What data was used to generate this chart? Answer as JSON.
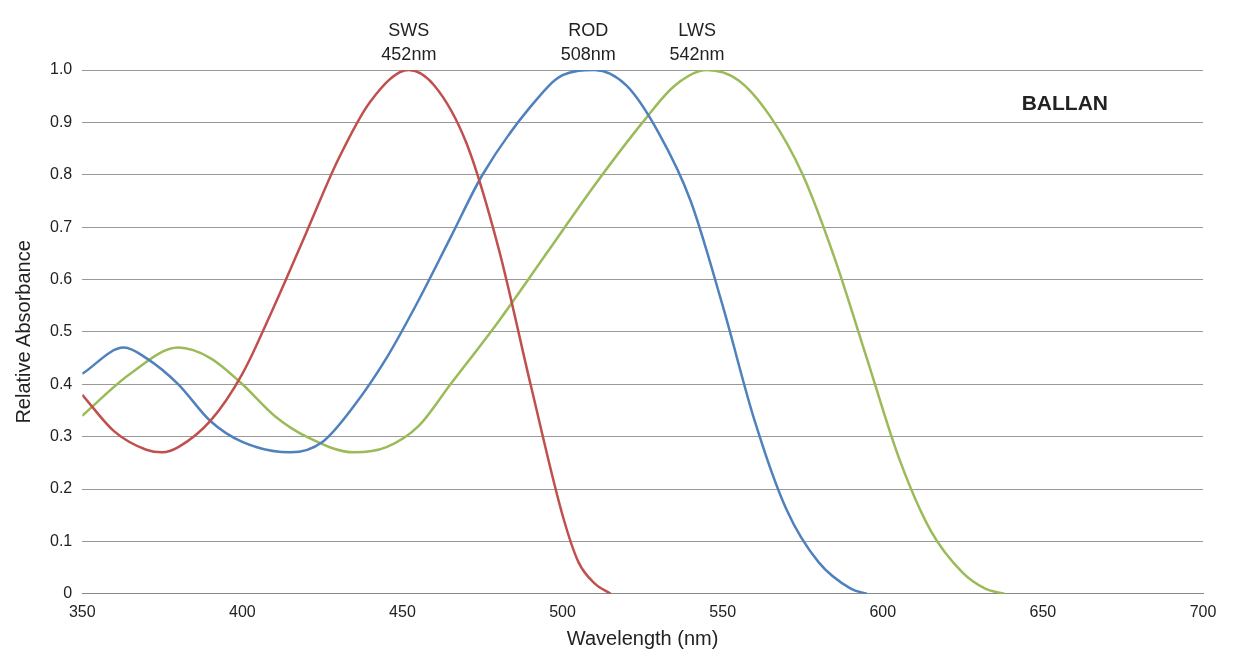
{
  "chart_data": {
    "type": "line",
    "xlabel": "Wavelength (nm)",
    "ylabel": "Relative Absorbance",
    "xlim": [
      350,
      700
    ],
    "xticks": [
      350,
      400,
      450,
      500,
      550,
      600,
      650,
      700
    ],
    "ylim": [
      0,
      1
    ],
    "yticks": [
      {
        "value": 0,
        "label": "0"
      },
      0.1,
      0.2,
      0.3,
      0.4,
      0.5,
      0.6,
      0.7,
      0.8,
      0.9,
      {
        "value": 1,
        "label": "1.0"
      }
    ],
    "grid": "y",
    "legend": false,
    "marker": "none",
    "line_style": "solid",
    "series": [
      {
        "name": "SWS",
        "color": "#c0504d",
        "x": [
          350,
          360,
          370,
          375,
          380,
          390,
          400,
          410,
          420,
          430,
          440,
          452,
          460,
          470,
          480,
          490,
          500,
          505,
          510,
          515
        ],
        "values": [
          0.38,
          0.31,
          0.275,
          0.27,
          0.28,
          0.33,
          0.42,
          0.55,
          0.69,
          0.83,
          0.94,
          1.0,
          0.97,
          0.86,
          0.66,
          0.4,
          0.15,
          0.06,
          0.02,
          0
        ]
      },
      {
        "name": "ROD",
        "color": "#4f81bd",
        "x": [
          350,
          363,
          370,
          380,
          390,
          400,
          415,
          425,
          435,
          445,
          455,
          465,
          475,
          490,
          500,
          510,
          520,
          530,
          540,
          550,
          560,
          570,
          580,
          590,
          595
        ],
        "values": [
          0.42,
          0.47,
          0.45,
          0.4,
          0.33,
          0.29,
          0.27,
          0.29,
          0.36,
          0.45,
          0.56,
          0.68,
          0.8,
          0.93,
          0.99,
          1.0,
          0.97,
          0.88,
          0.75,
          0.55,
          0.33,
          0.16,
          0.06,
          0.01,
          0
        ]
      },
      {
        "name": "LWS",
        "color": "#9bbb59",
        "x": [
          350,
          365,
          380,
          390,
          400,
          410,
          420,
          435,
          445,
          455,
          465,
          480,
          495,
          510,
          525,
          535,
          545,
          555,
          565,
          575,
          585,
          595,
          605,
          615,
          625,
          632,
          638
        ],
        "values": [
          0.34,
          0.42,
          0.47,
          0.45,
          0.4,
          0.34,
          0.3,
          0.27,
          0.28,
          0.32,
          0.4,
          0.52,
          0.65,
          0.78,
          0.9,
          0.97,
          1.0,
          0.98,
          0.91,
          0.8,
          0.64,
          0.45,
          0.26,
          0.12,
          0.04,
          0.01,
          0
        ]
      }
    ],
    "annotations": [
      {
        "text": "452nm",
        "x": 452,
        "y": 1
      },
      {
        "text": "508nm",
        "x": 508,
        "y": 1
      },
      {
        "text": "542nm",
        "x": 542,
        "y": 1
      },
      "BALLAN"
    ]
  }
}
